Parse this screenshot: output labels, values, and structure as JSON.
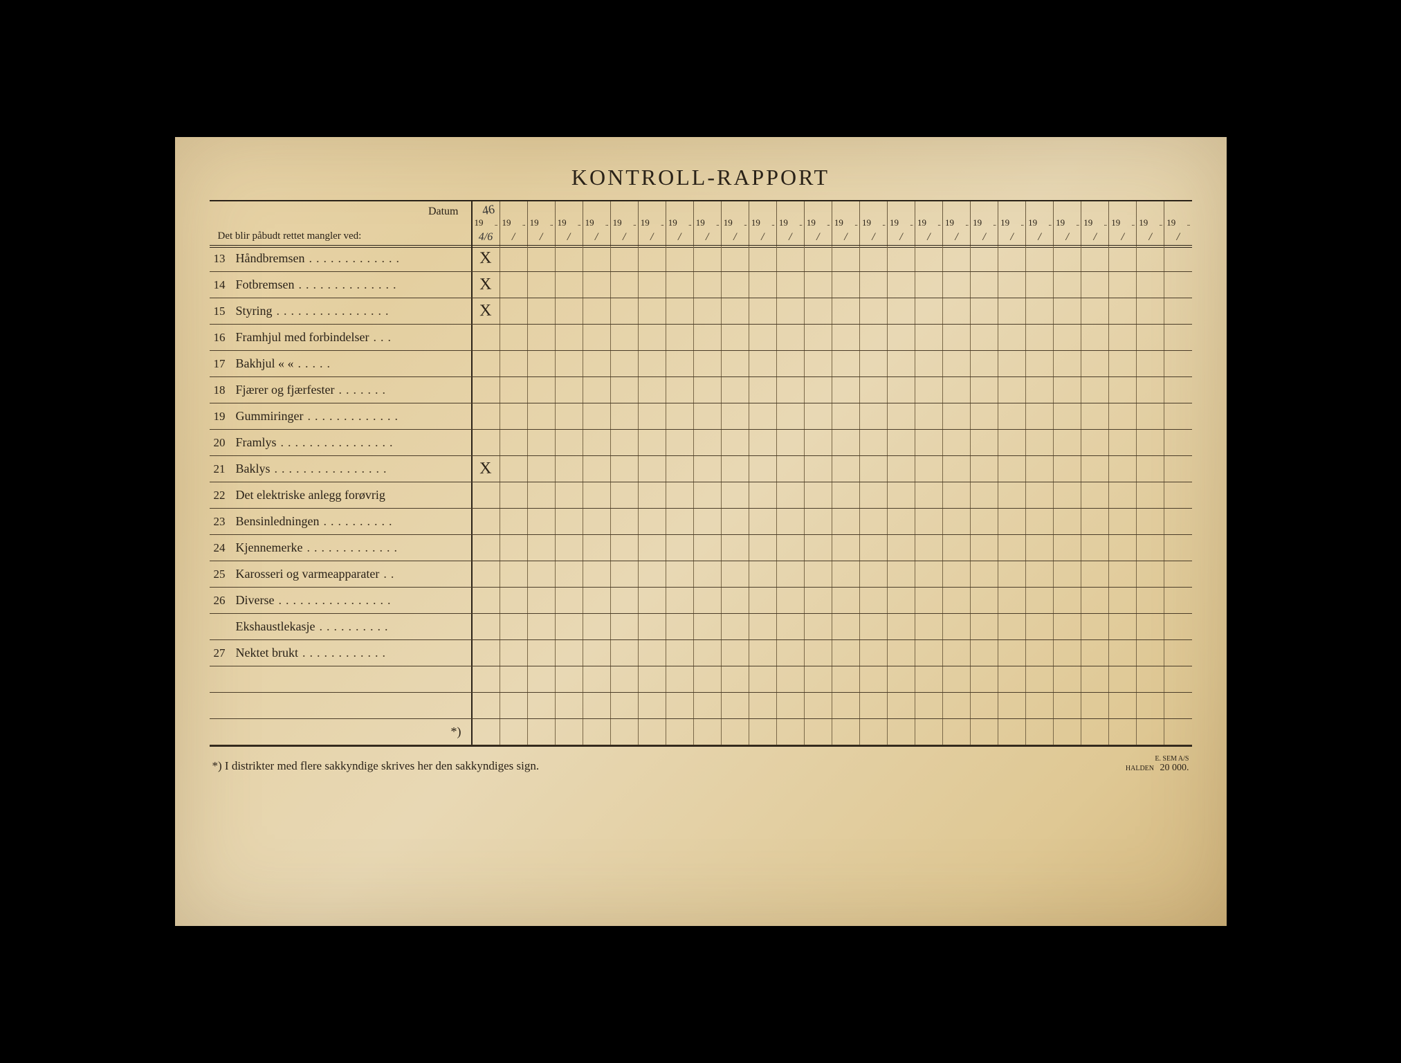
{
  "title": "KONTROLL-RAPPORT",
  "header": {
    "datum_label": "Datum",
    "sub_label": "Det blir påbudt rettet mangler ved:",
    "year_prefix": "19",
    "slash": "/",
    "num_columns": 26,
    "handwritten_year": "46",
    "handwritten_date": "4/6"
  },
  "rows": [
    {
      "num": "13",
      "label": "Håndbremsen",
      "marks": {
        "0": "X"
      }
    },
    {
      "num": "14",
      "label": "Fotbremsen",
      "marks": {
        "0": "X"
      }
    },
    {
      "num": "15",
      "label": "Styring",
      "marks": {
        "0": "X"
      }
    },
    {
      "num": "16",
      "label": "Framhjul med forbindelser",
      "marks": {}
    },
    {
      "num": "17",
      "label": "Bakhjul     «        «",
      "marks": {}
    },
    {
      "num": "18",
      "label": "Fjærer og fjærfester",
      "marks": {}
    },
    {
      "num": "19",
      "label": "Gummiringer",
      "marks": {}
    },
    {
      "num": "20",
      "label": "Framlys",
      "marks": {}
    },
    {
      "num": "21",
      "label": "Baklys",
      "marks": {
        "0": "X"
      }
    },
    {
      "num": "22",
      "label": "Det elektriske anlegg forøvrig",
      "marks": {}
    },
    {
      "num": "23",
      "label": "Bensinledningen",
      "marks": {}
    },
    {
      "num": "24",
      "label": "Kjennemerke",
      "marks": {}
    },
    {
      "num": "25",
      "label": "Karosseri og varmeapparater",
      "marks": {}
    },
    {
      "num": "26",
      "label": "Diverse",
      "marks": {}
    },
    {
      "num": "",
      "label": "Ekshaustlekasje",
      "marks": {}
    },
    {
      "num": "27",
      "label": "Nektet brukt",
      "marks": {}
    },
    {
      "num": "",
      "label": "",
      "marks": {}
    },
    {
      "num": "",
      "label": "",
      "marks": {}
    }
  ],
  "star_label": "*)",
  "footnote": "*)  I distrikter med flere sakkyndige skrives her den sakkyndiges sign.",
  "printer": {
    "line1": "E. SEM A/S",
    "line2": "HALDEN",
    "qty": "20 000."
  },
  "colors": {
    "paper": "#e6d2a6",
    "ink": "#2a2218",
    "grid": "#6b5a3e"
  },
  "typography": {
    "title_fontsize": 32,
    "body_fontsize": 18,
    "font_family": "Georgia, Times New Roman, serif"
  }
}
